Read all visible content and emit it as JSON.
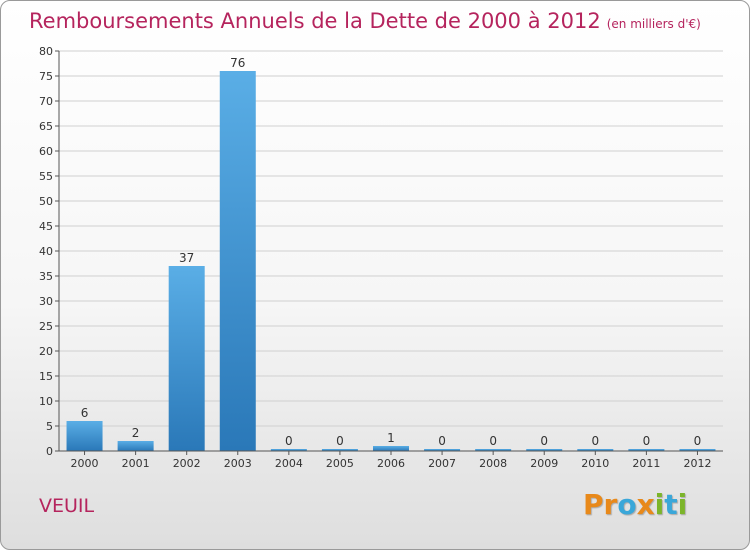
{
  "header": {
    "title": "Remboursements Annuels de la Dette de 2000 à 2012",
    "unit": "(en milliers d'€)"
  },
  "footer": {
    "commune": "VEUIL",
    "logo": [
      "P",
      "r",
      "o",
      "x",
      "i",
      "t",
      "i"
    ]
  },
  "colors": {
    "title": "#b5245d",
    "bar_light": "#5aaee6",
    "bar_dark": "#2a78b8",
    "grid": "#d0d0d0",
    "logo": [
      "#e8891a",
      "#e8891a",
      "#3aa7d9",
      "#e8891a",
      "#7cb52a",
      "#3aa7d9",
      "#7cb52a"
    ]
  },
  "chart_data": {
    "type": "bar",
    "title": "Remboursements Annuels de la Dette de 2000 à 2012",
    "xlabel": "",
    "ylabel": "",
    "categories": [
      "2000",
      "2001",
      "2002",
      "2003",
      "2004",
      "2005",
      "2006",
      "2007",
      "2008",
      "2009",
      "2010",
      "2011",
      "2012"
    ],
    "values": [
      6,
      2,
      37,
      76,
      0,
      0,
      1,
      0,
      0,
      0,
      0,
      0,
      0
    ],
    "ylim": [
      0,
      80
    ],
    "yticks": [
      0,
      5,
      10,
      15,
      20,
      25,
      30,
      35,
      40,
      45,
      50,
      55,
      60,
      65,
      70,
      75,
      80
    ],
    "grid": true
  }
}
